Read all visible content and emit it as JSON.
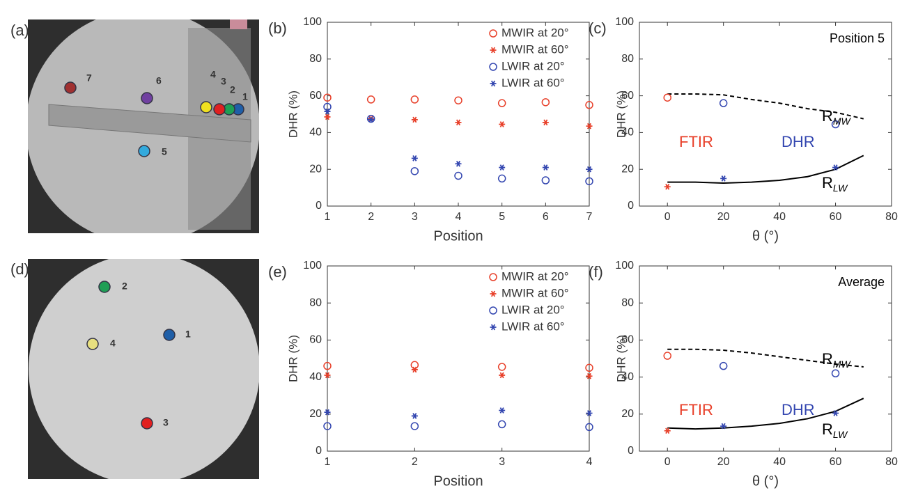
{
  "chart_data": [
    {
      "type": "scatter",
      "panel_label": "(b)",
      "xlabel": "Position",
      "ylabel": "DHR (%)",
      "x": [
        1,
        2,
        3,
        4,
        5,
        6,
        7
      ],
      "xlim": [
        1,
        7
      ],
      "xticks": [
        1,
        2,
        3,
        4,
        5,
        6,
        7
      ],
      "ylim": [
        0,
        100
      ],
      "yticks": [
        0,
        20,
        40,
        60,
        80,
        100
      ],
      "legend": "upper right",
      "series": [
        {
          "name": "MWIR at 20°",
          "color": "#e8402a",
          "marker": "circle",
          "values": [
            59,
            58,
            58,
            57.5,
            56,
            56.5,
            55
          ]
        },
        {
          "name": "MWIR at 60°",
          "color": "#e8402a",
          "marker": "star",
          "values": [
            48.5,
            47.5,
            47,
            45.5,
            44.5,
            45.5,
            43.5
          ]
        },
        {
          "name": "LWIR at 20°",
          "color": "#3346b0",
          "marker": "circle",
          "values": [
            54,
            47.5,
            19,
            16.5,
            15,
            14,
            13.5
          ]
        },
        {
          "name": "LWIR at 60°",
          "color": "#3346b0",
          "marker": "star",
          "values": [
            51.5,
            47,
            26,
            23,
            21,
            21,
            20
          ]
        }
      ]
    },
    {
      "type": "scatter",
      "panel_label": "(c)",
      "xlabel": "θ (°)",
      "ylabel": "DHR (%)",
      "xlim": [
        -10,
        80
      ],
      "xticks": [
        0,
        20,
        40,
        60,
        80
      ],
      "ylim": [
        0,
        100
      ],
      "yticks": [
        0,
        20,
        40,
        60,
        80,
        100
      ],
      "series": [
        {
          "color": "#000000",
          "line": "dashed",
          "x": [
            0,
            10,
            20,
            30,
            40,
            50,
            60,
            70
          ],
          "values": [
            61,
            61,
            60.5,
            58,
            56,
            53,
            51,
            47.5
          ]
        },
        {
          "color": "#000000",
          "line": "solid",
          "x": [
            0,
            10,
            20,
            30,
            40,
            50,
            60,
            70
          ],
          "values": [
            13,
            13,
            12.5,
            13,
            14,
            16,
            20,
            27.5
          ]
        },
        {
          "color": "#e8402a",
          "marker": "circle",
          "x": [
            0
          ],
          "values": [
            59
          ]
        },
        {
          "color": "#e8402a",
          "marker": "star",
          "x": [
            0
          ],
          "values": [
            10.5
          ]
        },
        {
          "color": "#3346b0",
          "marker": "circle",
          "x": [
            20,
            60
          ],
          "values": [
            56,
            44.5
          ]
        },
        {
          "color": "#3346b0",
          "marker": "star",
          "x": [
            20,
            60
          ],
          "values": [
            15,
            21
          ]
        }
      ],
      "annotations": [
        {
          "text": "Position 5",
          "color": "#000000"
        },
        {
          "text": "FTIR",
          "color": "#e8402a"
        },
        {
          "text": "DHR",
          "color": "#3346b0"
        },
        {
          "text": "R",
          "sub": "MW",
          "color": "#000000"
        },
        {
          "text": "R",
          "sub": "LW",
          "color": "#000000"
        }
      ]
    },
    {
      "type": "scatter",
      "panel_label": "(e)",
      "xlabel": "Position",
      "ylabel": "DHR (%)",
      "x": [
        1,
        2,
        3,
        4
      ],
      "xlim": [
        1,
        4
      ],
      "xticks": [
        1,
        2,
        3,
        4
      ],
      "ylim": [
        0,
        100
      ],
      "yticks": [
        0,
        20,
        40,
        60,
        80,
        100
      ],
      "legend": "upper right",
      "series": [
        {
          "name": "MWIR at 20°",
          "color": "#e8402a",
          "marker": "circle",
          "values": [
            46,
            46.5,
            45.5,
            45
          ]
        },
        {
          "name": "MWIR at 60°",
          "color": "#e8402a",
          "marker": "star",
          "values": [
            41,
            44,
            41,
            40.5
          ]
        },
        {
          "name": "LWIR at 20°",
          "color": "#3346b0",
          "marker": "circle",
          "values": [
            13.5,
            13.5,
            14.5,
            13
          ]
        },
        {
          "name": "LWIR at 60°",
          "color": "#3346b0",
          "marker": "star",
          "values": [
            21,
            19,
            22,
            20.5
          ]
        }
      ]
    },
    {
      "type": "scatter",
      "panel_label": "(f)",
      "xlabel": "θ (°)",
      "ylabel": "DHR (%)",
      "xlim": [
        -10,
        80
      ],
      "xticks": [
        0,
        20,
        40,
        60,
        80
      ],
      "ylim": [
        0,
        100
      ],
      "yticks": [
        0,
        20,
        40,
        60,
        80,
        100
      ],
      "series": [
        {
          "color": "#000000",
          "line": "dashed",
          "x": [
            0,
            10,
            20,
            30,
            40,
            50,
            60,
            70
          ],
          "values": [
            55,
            55,
            54.5,
            53,
            51,
            49,
            47,
            45.5
          ]
        },
        {
          "color": "#000000",
          "line": "solid",
          "x": [
            0,
            10,
            20,
            30,
            40,
            50,
            60,
            70
          ],
          "values": [
            12.5,
            12,
            12.5,
            13.5,
            15,
            17.5,
            21.5,
            28.5
          ]
        },
        {
          "color": "#e8402a",
          "marker": "circle",
          "x": [
            0
          ],
          "values": [
            51.5
          ]
        },
        {
          "color": "#e8402a",
          "marker": "star",
          "x": [
            0
          ],
          "values": [
            11
          ]
        },
        {
          "color": "#3346b0",
          "marker": "circle",
          "x": [
            20,
            60
          ],
          "values": [
            46,
            42
          ]
        },
        {
          "color": "#3346b0",
          "marker": "star",
          "x": [
            20,
            60
          ],
          "values": [
            13.5,
            20.5
          ]
        }
      ],
      "annotations": [
        {
          "text": "Average",
          "color": "#000000"
        },
        {
          "text": "FTIR",
          "color": "#e8402a"
        },
        {
          "text": "DHR",
          "color": "#3346b0"
        },
        {
          "text": "R",
          "sub": "MW",
          "color": "#000000"
        },
        {
          "text": "R",
          "sub": "LW",
          "color": "#000000"
        }
      ]
    }
  ],
  "photos": [
    {
      "panel_label": "(a)",
      "markers": [
        {
          "label": "1",
          "color": "#1f5fa8"
        },
        {
          "label": "2",
          "color": "#1f9e55"
        },
        {
          "label": "3",
          "color": "#e02020"
        },
        {
          "label": "4",
          "color": "#f0e020"
        },
        {
          "label": "5",
          "color": "#33aadd"
        },
        {
          "label": "6",
          "color": "#7040a0"
        },
        {
          "label": "7",
          "color": "#a03030"
        }
      ]
    },
    {
      "panel_label": "(d)",
      "markers": [
        {
          "label": "1",
          "color": "#1f5fa8"
        },
        {
          "label": "2",
          "color": "#1f9e55"
        },
        {
          "label": "3",
          "color": "#e02020"
        },
        {
          "label": "4",
          "color": "#e8e080"
        }
      ]
    }
  ]
}
